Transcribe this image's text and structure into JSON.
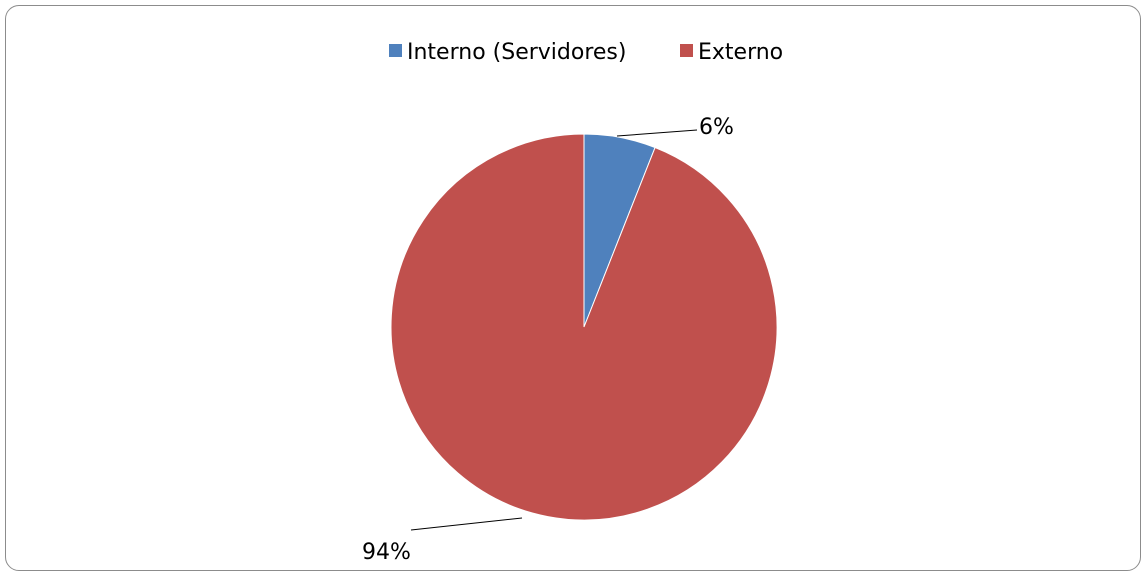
{
  "chart_data": {
    "type": "pie",
    "categories": [
      "Interno (Servidores)",
      "Externo"
    ],
    "values": [
      6,
      94
    ],
    "data_labels": [
      "6%",
      "94%"
    ],
    "colors": [
      "#4f81bd",
      "#c0504d"
    ],
    "legend_position": "top",
    "title": ""
  }
}
